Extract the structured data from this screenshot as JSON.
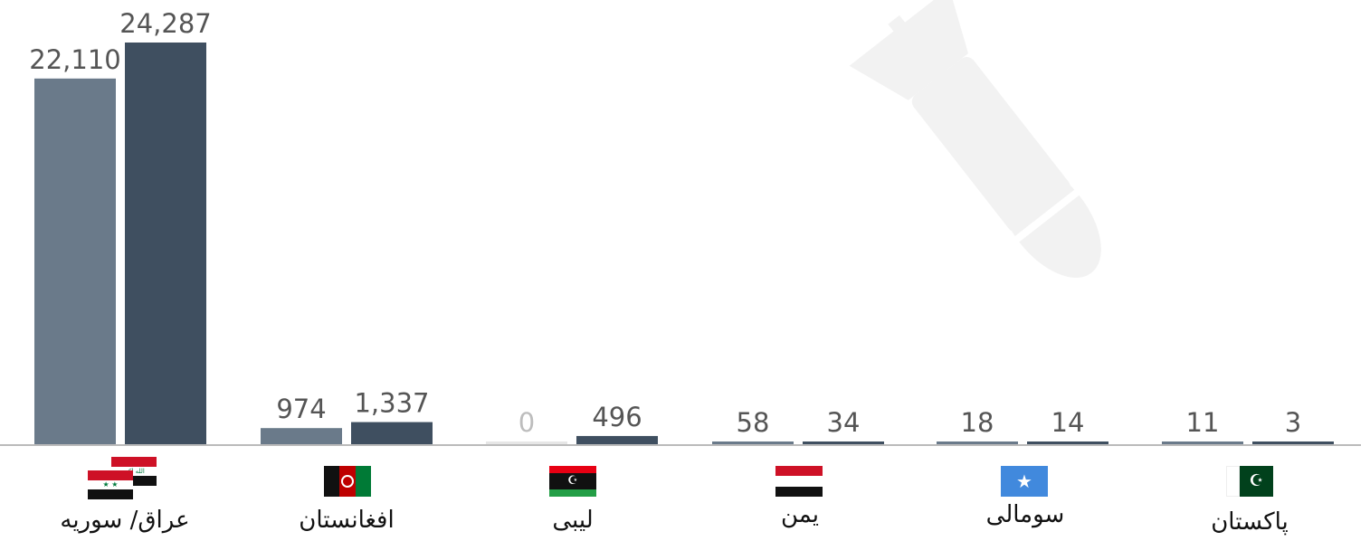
{
  "chart_data": {
    "type": "bar",
    "categories": [
      "عراق/ سوریه",
      "افغانستان",
      "لیبی",
      "یمن",
      "سومالی",
      "پاکستان"
    ],
    "series": [
      {
        "values": [
          22110,
          974,
          0,
          58,
          18,
          11
        ],
        "color": "#6a7a8a"
      },
      {
        "values": [
          24287,
          1337,
          496,
          34,
          14,
          3
        ],
        "color": "#3f4f60"
      }
    ],
    "value_labels": [
      [
        "22,110",
        "974",
        "0",
        "58",
        "18",
        "11"
      ],
      [
        "24,287",
        "1,337",
        "496",
        "34",
        "14",
        "3"
      ]
    ],
    "ylim": [
      0,
      24287
    ],
    "grid": false,
    "legend": "none",
    "watermark": "bomb-icon"
  },
  "labels": {
    "c0": "عراق/ سوریه",
    "c1": "افغانستان",
    "c2": "لیبی",
    "c3": "یمن",
    "c4": "سومالی",
    "c5": "پاکستان"
  },
  "flags": [
    "iraq-syria-flags",
    "afghanistan-flag",
    "libya-flag",
    "yemen-flag",
    "somalia-flag",
    "pakistan-flag"
  ]
}
